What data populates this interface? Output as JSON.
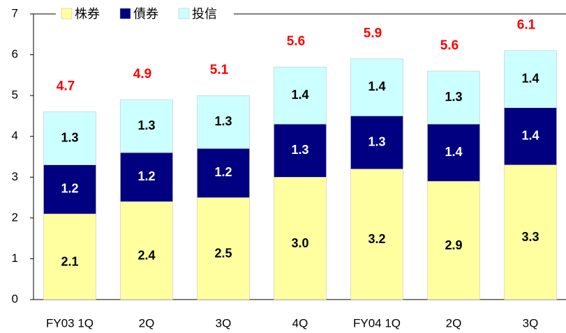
{
  "chart_data": {
    "type": "stacked_bar",
    "categories": [
      "FY03 1Q",
      "2Q",
      "3Q",
      "4Q",
      "FY04 1Q",
      "2Q",
      "3Q"
    ],
    "series": [
      {
        "name": "株券",
        "color": "#ffffa0",
        "values": [
          2.1,
          2.4,
          2.5,
          3.0,
          3.2,
          2.9,
          3.3
        ],
        "value_labels": [
          "2.1",
          "2.4",
          "2.5",
          "3.0",
          "3.2",
          "2.9",
          "3.3"
        ]
      },
      {
        "name": "債券",
        "color": "#000080",
        "values": [
          1.2,
          1.2,
          1.2,
          1.3,
          1.3,
          1.4,
          1.4
        ],
        "value_labels": [
          "1.2",
          "1.2",
          "1.2",
          "1.3",
          "1.3",
          "1.4",
          "1.4"
        ]
      },
      {
        "name": "投信",
        "color": "#ccffff",
        "values": [
          1.3,
          1.3,
          1.3,
          1.4,
          1.4,
          1.3,
          1.4
        ],
        "value_labels": [
          "1.3",
          "1.3",
          "1.3",
          "1.4",
          "1.4",
          "1.3",
          "1.4"
        ]
      }
    ],
    "totals": [
      4.7,
      4.9,
      5.1,
      5.6,
      5.9,
      5.6,
      6.1
    ],
    "ylim": [
      0,
      7
    ],
    "yticks": [
      0,
      1,
      2,
      3,
      4,
      5,
      6,
      7
    ],
    "grid": false,
    "legend": "top-left"
  }
}
